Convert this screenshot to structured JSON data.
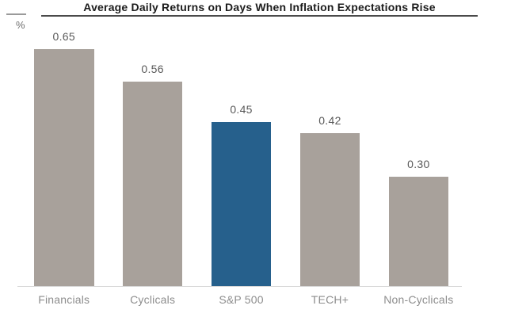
{
  "chart_data": {
    "type": "bar",
    "title": "Average Daily Returns on Days When Inflation Expectations Rise",
    "ylabel": "%",
    "xlabel": "",
    "categories": [
      "Financials",
      "Cyclicals",
      "S&P 500",
      "TECH+",
      "Non-Cyclicals"
    ],
    "values": [
      0.65,
      0.56,
      0.45,
      0.42,
      0.3
    ],
    "value_labels": [
      "0.65",
      "0.56",
      "0.45",
      "0.42",
      "0.30"
    ],
    "highlight_index": 2,
    "bar_color": "#a8a19b",
    "highlight_color": "#26608c",
    "value_label_color": "#595959",
    "axis_label_color": "#8d8d8d",
    "baseline_color": "#d9d9d9",
    "ylim": [
      0,
      0.7
    ],
    "grid": false,
    "legend": false,
    "data_labels_shown": true
  }
}
